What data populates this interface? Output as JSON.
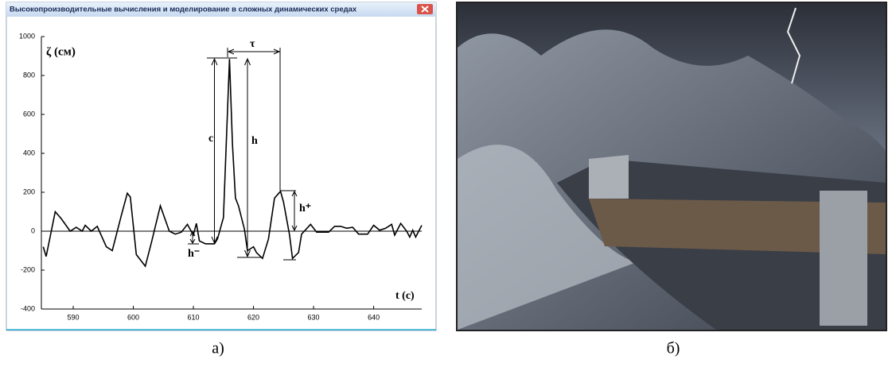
{
  "window_title": "Высокопроизводительные вычисления и моделирование в сложных динамических средах",
  "chart_data": {
    "type": "line",
    "y_label": "ζ (см)",
    "x_label": "t (c)",
    "xlim": [
      584.7,
      648
    ],
    "xticks": [
      590,
      600,
      610,
      620,
      630,
      640
    ],
    "ylim": [
      -400,
      1000
    ],
    "yticks": [
      -400,
      -200,
      0,
      200,
      400,
      600,
      800,
      1000
    ],
    "color": "#000000",
    "x": [
      585,
      585.5,
      587,
      588,
      589.5,
      590.5,
      591.5,
      592,
      593,
      594,
      595.5,
      596.5,
      598,
      599,
      599.5,
      600.5,
      602,
      603,
      604.5,
      606,
      607,
      608,
      609,
      610,
      610.5,
      611,
      612,
      613.5,
      614,
      615,
      616,
      616.5,
      617,
      617.5,
      618.5,
      619,
      620,
      620.5,
      621.5,
      622.5,
      623.5,
      624.5,
      625,
      626,
      626.5,
      627.5,
      628,
      629.5,
      630.5,
      631.5,
      632.5,
      633.5,
      634.5,
      635.5,
      636.5,
      637.5,
      639,
      640,
      641,
      642,
      643,
      643.5,
      644.5,
      645.5,
      646,
      646.5,
      647,
      648
    ],
    "values": [
      -80,
      -130,
      100,
      65,
      0,
      20,
      0,
      30,
      0,
      25,
      -80,
      -100,
      80,
      195,
      175,
      -120,
      -180,
      -60,
      130,
      0,
      -15,
      -5,
      35,
      -20,
      40,
      -50,
      -65,
      -65,
      -40,
      70,
      885,
      450,
      170,
      130,
      10,
      -100,
      -80,
      -110,
      -140,
      -40,
      170,
      205,
      150,
      -20,
      -140,
      -110,
      -15,
      35,
      -5,
      -5,
      -5,
      25,
      25,
      15,
      20,
      -15,
      -15,
      30,
      5,
      15,
      35,
      -20,
      40,
      0,
      -30,
      5,
      -30,
      30
    ],
    "annotations": [
      "c",
      "h",
      "τ",
      "h⁺",
      "h⁻"
    ]
  },
  "captions": [
    "а)",
    "б)"
  ]
}
